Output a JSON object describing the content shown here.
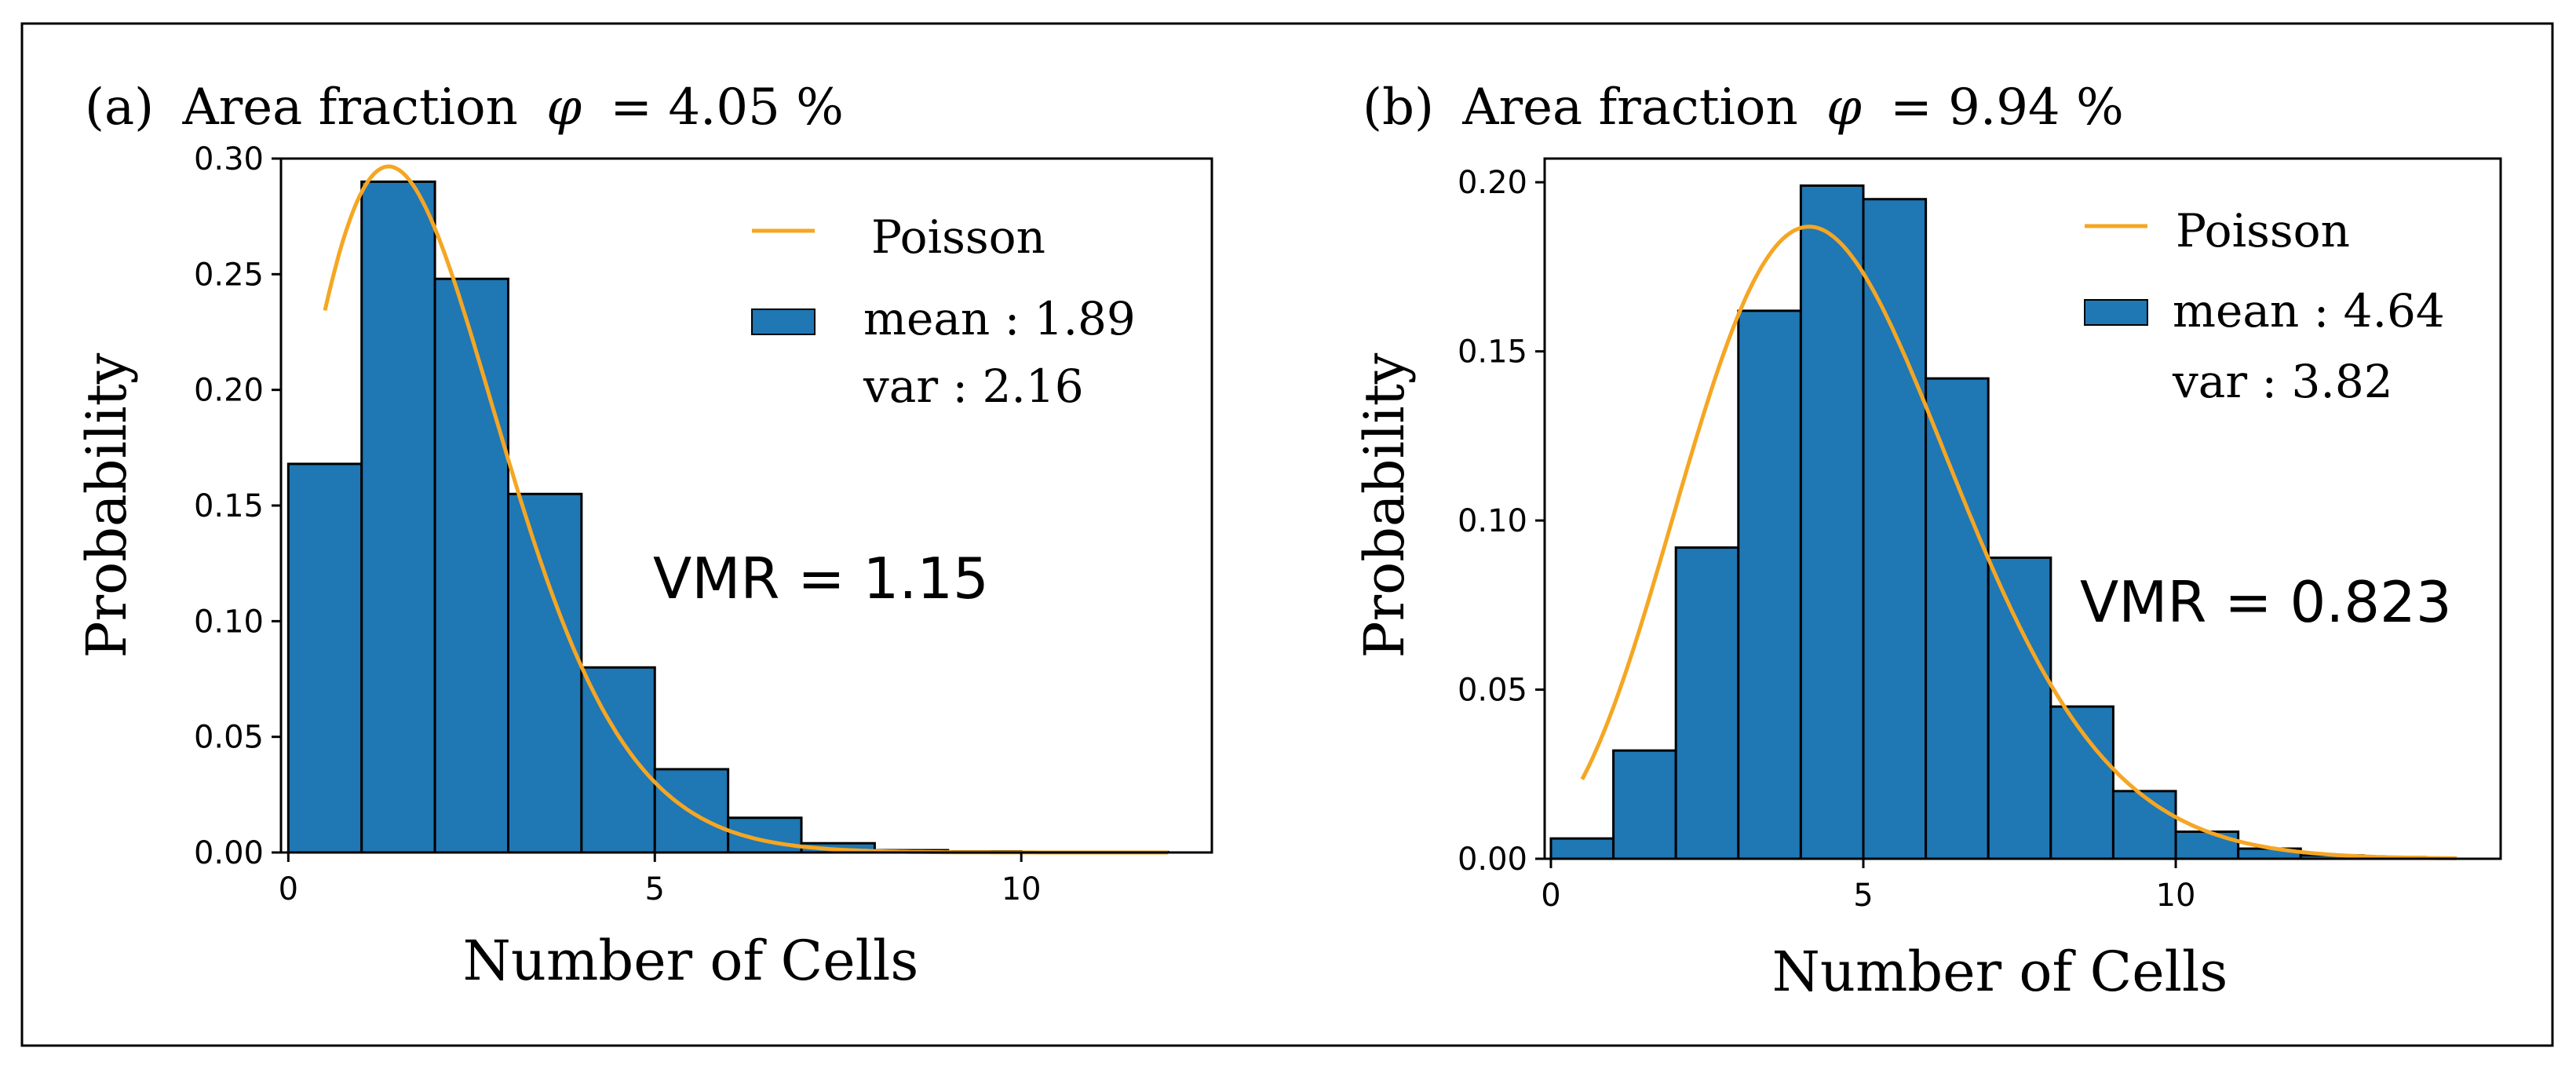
{
  "chart_data": [
    {
      "type": "bar",
      "panel_label": "(a)",
      "title_prefix": "Area fraction",
      "title_symbol": "φ",
      "title_value": "= 4.05 %",
      "xlabel": "Number of Cells",
      "ylabel": "Probability",
      "xlim": [
        -0.1,
        12.6
      ],
      "ylim": [
        0,
        0.3
      ],
      "xticks": [
        0,
        5,
        10
      ],
      "yticks": [
        "0.00",
        "0.05",
        "0.10",
        "0.15",
        "0.20",
        "0.25",
        "0.30"
      ],
      "bin_edges": [
        0,
        1,
        2,
        3,
        4,
        5,
        6,
        7,
        8,
        9,
        10,
        11,
        12
      ],
      "values": [
        0.168,
        0.29,
        0.248,
        0.155,
        0.08,
        0.036,
        0.015,
        0.004,
        0.001,
        0.0005,
        0.0003,
        0.0002
      ],
      "bar_color": "#1f77b4",
      "curve_color": "#f5a623",
      "poisson_lambda": 1.89,
      "poisson_x_range": [
        0.5,
        12
      ],
      "legend": {
        "curve_label": "Poisson",
        "bar_label": "mean : 1.89",
        "extra_label": "var : 2.16",
        "location": "upper-right"
      },
      "annotation": "VMR = 1.15"
    },
    {
      "type": "bar",
      "panel_label": "(b)",
      "title_prefix": "Area fraction",
      "title_symbol": "φ",
      "title_value": "= 9.94 %",
      "xlabel": "Number of Cells",
      "ylabel": "Probability",
      "xlim": [
        -0.1,
        15.2
      ],
      "ylim": [
        0,
        0.207
      ],
      "xticks": [
        0,
        5,
        10
      ],
      "yticks": [
        "0.00",
        "0.05",
        "0.10",
        "0.15",
        "0.20"
      ],
      "bin_edges": [
        0,
        1,
        2,
        3,
        4,
        5,
        6,
        7,
        8,
        9,
        10,
        11,
        12,
        13,
        14
      ],
      "values": [
        0.006,
        0.032,
        0.092,
        0.162,
        0.199,
        0.195,
        0.142,
        0.089,
        0.045,
        0.02,
        0.008,
        0.003,
        0.001,
        0.0005
      ],
      "bar_color": "#1f77b4",
      "curve_color": "#f5a623",
      "poisson_lambda": 4.64,
      "poisson_x_range": [
        0.5,
        14.5
      ],
      "legend": {
        "curve_label": "Poisson",
        "bar_label": "mean : 4.64",
        "extra_label": "var : 3.82",
        "location": "upper-right"
      },
      "annotation": "VMR = 0.823"
    }
  ]
}
